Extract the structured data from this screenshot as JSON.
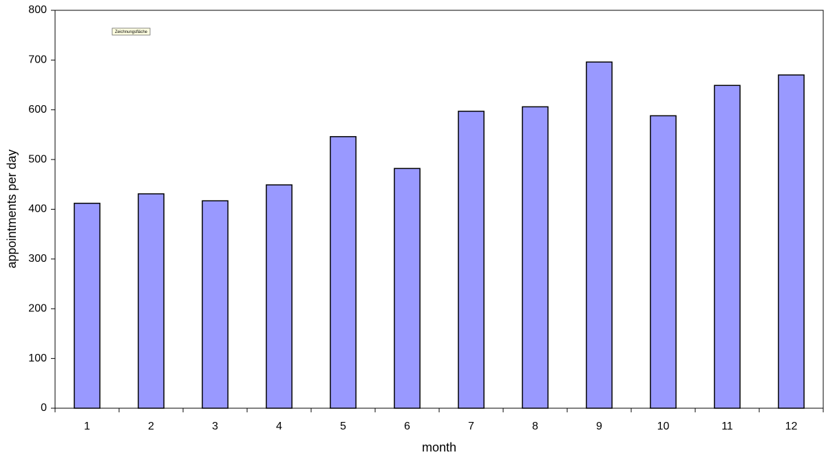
{
  "chart_data": {
    "type": "bar",
    "x_label": "month",
    "y_label": "appointments per day",
    "annotation": "Zeichnungsfläche",
    "categories": [
      "1",
      "2",
      "3",
      "4",
      "5",
      "6",
      "7",
      "8",
      "9",
      "10",
      "11",
      "12"
    ],
    "values": [
      412,
      431,
      417,
      449,
      546,
      482,
      597,
      606,
      696,
      588,
      649,
      670
    ],
    "color": "#9999ff",
    "ylim": [
      0,
      800
    ],
    "yticks": [
      0,
      100,
      200,
      300,
      400,
      500,
      600,
      700,
      800
    ],
    "grid": false
  }
}
